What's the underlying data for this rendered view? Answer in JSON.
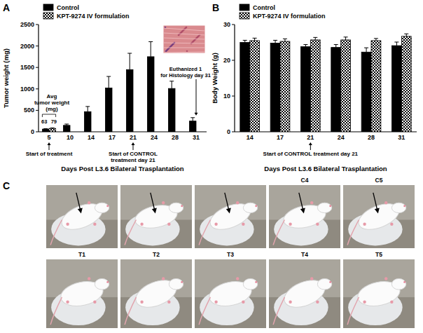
{
  "chart_data": [
    {
      "type": "bar",
      "title": "A",
      "categories": [
        "5",
        "10",
        "14",
        "17",
        "21",
        "24",
        "28",
        "31"
      ],
      "series": [
        {
          "name": "Control",
          "color": "#000000",
          "values": [
            63,
            150,
            470,
            1020,
            1450,
            1750,
            1010,
            250
          ],
          "errors": [
            10,
            30,
            120,
            270,
            380,
            350,
            170,
            80
          ]
        },
        {
          "name": "KPT-9274 IV formulation",
          "color": "#000000",
          "marker": "checkerboard",
          "values": [
            79,
            null,
            null,
            null,
            null,
            null,
            null,
            null
          ],
          "errors": [
            12,
            null,
            null,
            null,
            null,
            null,
            null,
            null
          ]
        }
      ],
      "ylim": [
        0,
        2500
      ],
      "yticks": [
        0,
        500,
        1000,
        1500,
        2000,
        2500
      ],
      "y_label": "Tumor weight (mg)",
      "x_label": "Days Post L3.6 Bilateral Trasplantation",
      "legend": "upper left",
      "grid": false,
      "annotations": [
        {
          "text": [
            "Avg",
            "tumor weight",
            "(mg)"
          ],
          "category": "5"
        },
        {
          "text": [
            "Start of treatment"
          ],
          "category": "5"
        },
        {
          "text": [
            "Start of CONTROL",
            "treatment day 21"
          ],
          "category": "21"
        },
        {
          "text": [
            "Euthanized 1",
            "for Histology day 31"
          ],
          "category": "31"
        }
      ]
    },
    {
      "type": "bar",
      "title": "B",
      "categories": [
        "14",
        "17",
        "21",
        "24",
        "28",
        "31"
      ],
      "series": [
        {
          "name": "Control",
          "color": "#000000",
          "values": [
            25,
            24.8,
            23.8,
            23.6,
            22.3,
            24.1
          ],
          "errors": [
            0.6,
            0.8,
            0.6,
            0.8,
            1.2,
            1.0
          ]
        },
        {
          "name": "KPT-9274 IV formulation",
          "color": "#000000",
          "marker": "checkerboard",
          "values": [
            25.5,
            25.3,
            25.7,
            25.7,
            25.5,
            26.7
          ],
          "errors": [
            0.7,
            0.7,
            0.7,
            0.8,
            0.6,
            0.7
          ]
        }
      ],
      "ylim": [
        0,
        30
      ],
      "yticks": [
        0,
        10,
        20,
        30
      ],
      "y_label": "Body Weight (g)",
      "x_label": "Days Post L3.6 Bilateral Trasplantation",
      "legend": "upper left",
      "grid": false,
      "annotations": [
        {
          "text": [
            "Start of CONTROL treatment day 21"
          ],
          "category": "21"
        }
      ]
    }
  ],
  "panel_c": {
    "title": "C",
    "top_labels": [
      null,
      null,
      null,
      "C4",
      "C5"
    ],
    "bottom_labels": [
      "T1",
      "T2",
      "T3",
      "T4",
      "T5"
    ]
  }
}
